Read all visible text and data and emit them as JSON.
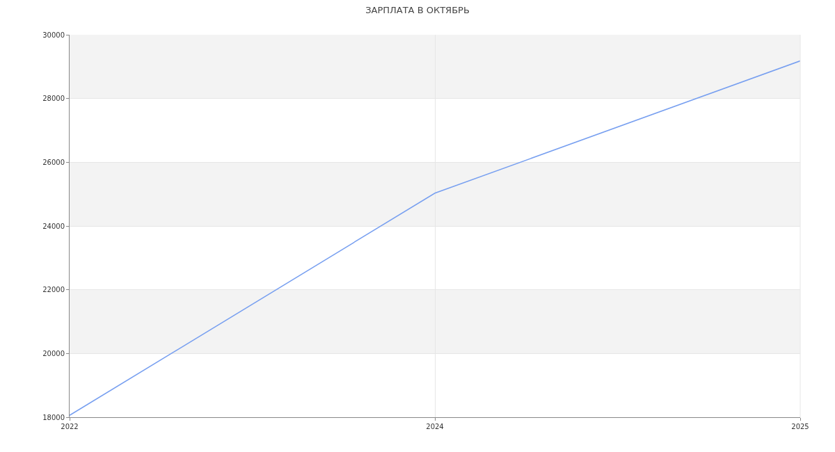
{
  "chart_data": {
    "type": "line",
    "title": "ЗАРПЛАТА В ОКТЯБРЬ",
    "categories": [
      "2022",
      "2024",
      "2025"
    ],
    "series": [
      {
        "color": "#779ff0",
        "values": [
          18060,
          25030,
          29180
        ]
      }
    ],
    "ylim": [
      18000,
      30000
    ],
    "yticks": [
      18000,
      20000,
      22000,
      24000,
      26000,
      28000,
      30000
    ],
    "bands": [
      {
        "axis": "y",
        "from": 20000,
        "to": 22000,
        "color": "#f3f3f3"
      },
      {
        "axis": "y",
        "from": 24000,
        "to": 26000,
        "color": "#f3f3f3"
      },
      {
        "axis": "y",
        "from": 28000,
        "to": 30000,
        "color": "#f3f3f3"
      }
    ],
    "grid": true,
    "marker": "none",
    "line_style": "solid"
  }
}
